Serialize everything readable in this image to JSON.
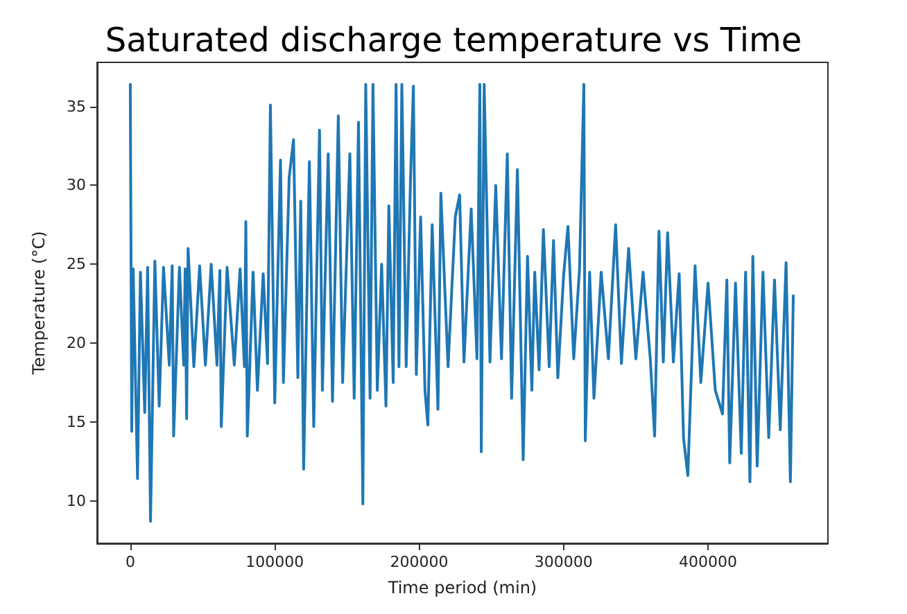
{
  "chart_data": {
    "type": "line",
    "title": "Saturated discharge temperature vs Time",
    "xlabel": "Time period (min)",
    "ylabel": "Temperature (°C)",
    "xlim": [
      -23000,
      483000
    ],
    "ylim": [
      7.3,
      37.8
    ],
    "xticks": [
      0,
      100000,
      200000,
      300000,
      400000
    ],
    "yticks": [
      10,
      15,
      20,
      25,
      30,
      35
    ],
    "grid": false,
    "marker": "none",
    "line_style": "solid",
    "series": [
      {
        "color": "#1f77b4",
        "x": [
          0,
          1000,
          2000,
          5000,
          7000,
          10000,
          12000,
          14000,
          17000,
          20000,
          23000,
          27000,
          29000,
          30000,
          34000,
          37000,
          38000,
          39000,
          40000,
          44000,
          48000,
          52000,
          56000,
          60000,
          62000,
          63000,
          67000,
          72000,
          76000,
          79000,
          80000,
          81000,
          85000,
          88000,
          92000,
          95000,
          97000,
          100000,
          104000,
          106000,
          110000,
          113000,
          116000,
          118000,
          120000,
          124000,
          127000,
          131000,
          133000,
          137000,
          140000,
          144000,
          147000,
          152000,
          155000,
          158000,
          161000,
          163000,
          166000,
          168000,
          171000,
          174000,
          177000,
          179000,
          182000,
          184000,
          186000,
          188000,
          191000,
          194000,
          196000,
          198000,
          201000,
          204000,
          206000,
          209000,
          213000,
          215000,
          220000,
          225000,
          228000,
          231000,
          236000,
          240000,
          242000,
          243000,
          245000,
          249000,
          253000,
          257000,
          261000,
          264000,
          268000,
          272000,
          275000,
          278000,
          280000,
          283000,
          286000,
          290000,
          293000,
          296000,
          300000,
          303000,
          307000,
          311000,
          314000,
          315000,
          318000,
          321000,
          326000,
          331000,
          336000,
          340000,
          345000,
          350000,
          355000,
          360000,
          363000,
          366000,
          369000,
          372000,
          376000,
          380000,
          383000,
          386000,
          391000,
          395000,
          400000,
          405000,
          410000,
          413000,
          415000,
          419000,
          423000,
          426000,
          429000,
          431000,
          434000,
          438000,
          442000,
          446000,
          450000,
          454000,
          457000,
          459000
        ],
        "values": [
          36.4,
          14.4,
          24.7,
          11.4,
          24.5,
          15.6,
          24.8,
          8.7,
          25.2,
          16.0,
          24.8,
          18.6,
          24.9,
          14.1,
          24.8,
          18.6,
          24.7,
          15.2,
          26.0,
          18.5,
          24.9,
          18.6,
          25.0,
          18.6,
          24.6,
          14.7,
          24.8,
          18.6,
          24.7,
          18.5,
          27.7,
          14.1,
          24.5,
          17.0,
          24.4,
          18.7,
          35.1,
          16.2,
          31.6,
          17.5,
          30.5,
          32.9,
          17.8,
          29.0,
          12.0,
          31.5,
          14.7,
          33.5,
          17.0,
          32.0,
          16.3,
          34.4,
          17.5,
          32.0,
          16.5,
          34.0,
          9.8,
          36.4,
          16.5,
          36.4,
          17.0,
          25.0,
          16.0,
          28.7,
          17.5,
          36.4,
          18.5,
          36.4,
          18.5,
          30.4,
          36.3,
          18.0,
          28.0,
          17.0,
          14.8,
          27.5,
          15.8,
          29.5,
          18.5,
          28.0,
          29.4,
          18.8,
          28.5,
          19.0,
          36.4,
          13.1,
          36.4,
          18.8,
          30.0,
          19.0,
          32.0,
          16.5,
          31.0,
          12.6,
          25.5,
          17.0,
          24.5,
          18.3,
          27.2,
          18.5,
          26.5,
          17.8,
          24.3,
          27.4,
          19.0,
          24.7,
          36.4,
          13.8,
          24.5,
          16.5,
          24.5,
          19.0,
          27.5,
          18.7,
          26.0,
          19.0,
          24.5,
          19.0,
          14.1,
          27.1,
          18.8,
          27.0,
          18.8,
          24.4,
          14.0,
          11.6,
          24.9,
          17.5,
          23.8,
          17.0,
          15.5,
          24.0,
          12.4,
          23.8,
          13.0,
          24.5,
          11.2,
          25.5,
          12.2,
          24.5,
          14.0,
          24.0,
          14.5,
          25.1,
          11.2,
          23.0
        ]
      }
    ]
  }
}
